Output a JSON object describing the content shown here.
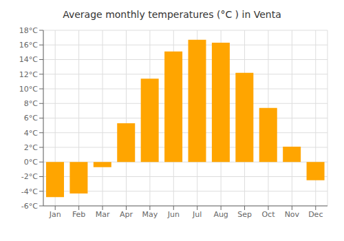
{
  "chart_data": {
    "type": "bar",
    "title": "Average monthly temperatures (°C ) in Venta",
    "categories": [
      "Jan",
      "Feb",
      "Mar",
      "Apr",
      "May",
      "Jun",
      "Jul",
      "Aug",
      "Sep",
      "Oct",
      "Nov",
      "Dec"
    ],
    "values": [
      -4.8,
      -4.3,
      -0.7,
      5.3,
      11.4,
      15.1,
      16.7,
      16.3,
      12.2,
      7.4,
      2.1,
      -2.5
    ],
    "color": "#FFA500",
    "ylim": [
      -6,
      18
    ],
    "yticks": [
      {
        "value": -6,
        "label": "-6°C"
      },
      {
        "value": -4,
        "label": "-4°C"
      },
      {
        "value": -2,
        "label": "-2°C"
      },
      {
        "value": 0,
        "label": "0°C"
      },
      {
        "value": 2,
        "label": "2°C"
      },
      {
        "value": 4,
        "label": "4°C"
      },
      {
        "value": 6,
        "label": "6°C"
      },
      {
        "value": 8,
        "label": "8°C"
      },
      {
        "value": 10,
        "label": "10°C"
      },
      {
        "value": 12,
        "label": "12°C"
      },
      {
        "value": 14,
        "label": "14°C"
      },
      {
        "value": 16,
        "label": "16°C"
      },
      {
        "value": 18,
        "label": "18°C"
      }
    ],
    "grid": true
  }
}
